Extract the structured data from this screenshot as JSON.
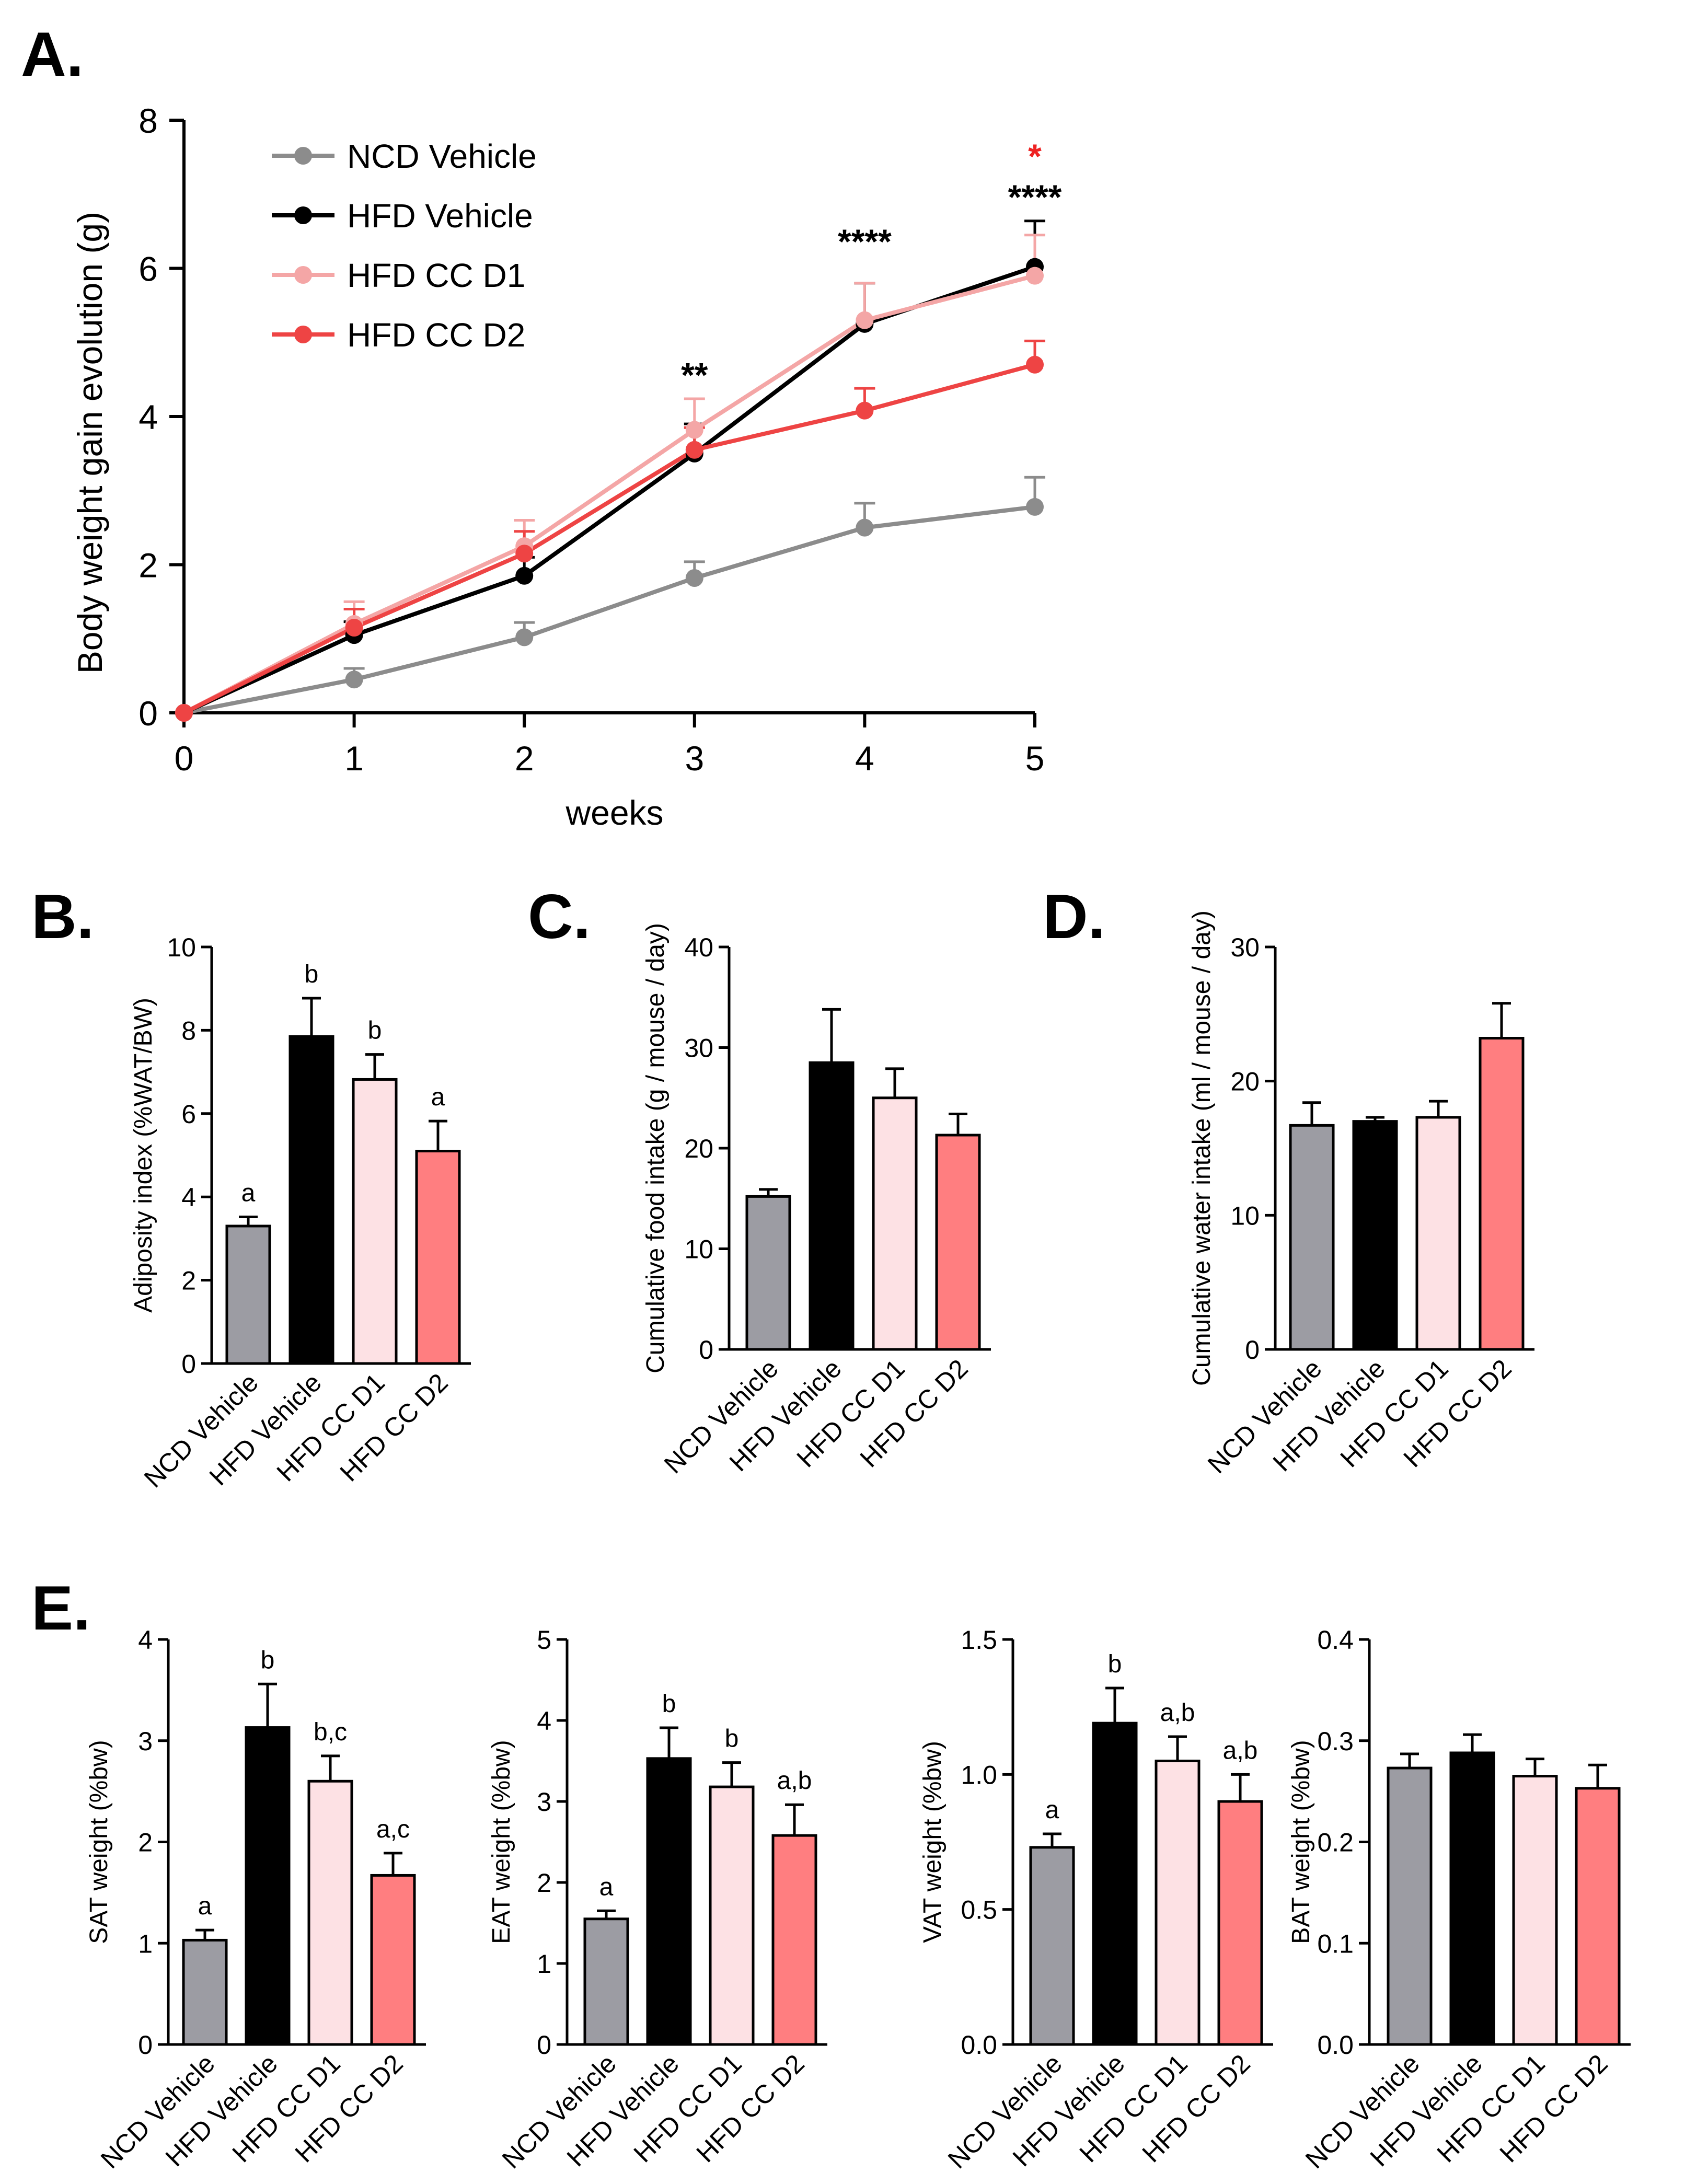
{
  "groups": [
    "NCD Vehicle",
    "HFD Vehicle",
    "HFD CC D1",
    "HFD CC D2"
  ],
  "colors": {
    "ncd": "#8c8c8c",
    "hfd": "#000000",
    "cc_d1_line": "#f4a6a6",
    "cc_d2_line": "#ee4444",
    "ncd_bar": "#9c9ca3",
    "hfd_bar": "#000000",
    "cc_d1_bar": "#fde1e4",
    "cc_d2_bar": "#ff7e80",
    "sig_red": "#ee2222"
  },
  "chart_data": [
    {
      "id": "A",
      "panel_label": "A.",
      "type": "line",
      "ylabel": "Body weight gain evolution (g)",
      "xlabel": "weeks",
      "ylim": [
        0,
        8
      ],
      "yticks": [
        0,
        2,
        4,
        6,
        8
      ],
      "xlim": [
        0,
        5
      ],
      "xticks": [
        0,
        1,
        2,
        3,
        4,
        5
      ],
      "legend_position": "top-left",
      "series": [
        {
          "name": "NCD Vehicle",
          "color_key": "ncd",
          "values": [
            0,
            0.45,
            1.02,
            1.82,
            2.5,
            2.78
          ],
          "errors": [
            0,
            0.15,
            0.2,
            0.22,
            0.33,
            0.4
          ]
        },
        {
          "name": "HFD Vehicle",
          "color_key": "hfd",
          "values": [
            0,
            1.05,
            1.85,
            3.5,
            5.25,
            6.02
          ],
          "errors": [
            0,
            0.18,
            0.25,
            0.4,
            0.55,
            0.62
          ]
        },
        {
          "name": "HFD CC D1",
          "color_key": "cc_d1_line",
          "values": [
            0,
            1.2,
            2.25,
            3.82,
            5.3,
            5.9
          ],
          "errors": [
            0,
            0.3,
            0.35,
            0.42,
            0.5,
            0.55
          ]
        },
        {
          "name": "HFD CC D2",
          "color_key": "cc_d2_line",
          "values": [
            0,
            1.15,
            2.15,
            3.55,
            4.08,
            4.7
          ],
          "errors": [
            0,
            0.25,
            0.3,
            0.3,
            0.3,
            0.32
          ]
        }
      ],
      "annotations": [
        {
          "week": 3,
          "text": "**",
          "y_value": 4.4,
          "color_key": "hfd"
        },
        {
          "week": 4,
          "text": "****",
          "y_value": 6.2,
          "color_key": "hfd"
        },
        {
          "week": 5,
          "text": "****",
          "y_value": 6.8,
          "color_key": "hfd"
        },
        {
          "week": 5,
          "text": "*",
          "y_value": 7.35,
          "color_key": "sig_red"
        }
      ]
    },
    {
      "id": "B",
      "panel_label": "B.",
      "type": "bar",
      "ylabel": "Adiposity index (%WAT/BW)",
      "ylim": [
        0,
        10
      ],
      "yticks": [
        "0",
        "2",
        "4",
        "6",
        "8",
        "10"
      ],
      "values": [
        3.3,
        7.85,
        6.82,
        5.1
      ],
      "errors": [
        0.22,
        0.92,
        0.6,
        0.72
      ],
      "letters": [
        "a",
        "b",
        "b",
        "a"
      ]
    },
    {
      "id": "C",
      "panel_label": "C.",
      "type": "bar",
      "ylabel": "Cumulative food intake (g / mouse / day)",
      "ylim": [
        0,
        40
      ],
      "yticks": [
        "0",
        "10",
        "20",
        "30",
        "40"
      ],
      "values": [
        15.2,
        28.5,
        25.0,
        21.3
      ],
      "errors": [
        0.7,
        5.3,
        2.9,
        2.1
      ],
      "letters": [
        "",
        "",
        "",
        ""
      ]
    },
    {
      "id": "D",
      "panel_label": "D.",
      "type": "bar",
      "ylabel": "Cumulative water intake (ml / mouse / day)",
      "ylim": [
        0,
        30
      ],
      "yticks": [
        "0",
        "10",
        "20",
        "30"
      ],
      "values": [
        16.7,
        17.0,
        17.3,
        23.2
      ],
      "errors": [
        1.7,
        0.3,
        1.2,
        2.6
      ],
      "letters": [
        "",
        "",
        "",
        ""
      ]
    },
    {
      "id": "E1",
      "panel_label": "E.",
      "type": "bar",
      "ylabel": "SAT weight (%bw)",
      "ylim": [
        0,
        4
      ],
      "yticks": [
        "0",
        "1",
        "2",
        "3",
        "4"
      ],
      "values": [
        1.03,
        3.13,
        2.6,
        1.67
      ],
      "errors": [
        0.1,
        0.43,
        0.25,
        0.22
      ],
      "letters": [
        "a",
        "b",
        "b,c",
        "a,c"
      ]
    },
    {
      "id": "E2",
      "panel_label": "",
      "type": "bar",
      "ylabel": "EAT weight (%bw)",
      "ylim": [
        0,
        5
      ],
      "yticks": [
        "0",
        "1",
        "2",
        "3",
        "4",
        "5"
      ],
      "values": [
        1.55,
        3.53,
        3.18,
        2.58
      ],
      "errors": [
        0.1,
        0.38,
        0.3,
        0.38
      ],
      "letters": [
        "a",
        "b",
        "b",
        "a,b"
      ]
    },
    {
      "id": "E3",
      "panel_label": "",
      "type": "bar",
      "ylabel": "VAT weight (%bw)",
      "ylim": [
        0,
        1.5
      ],
      "yticks": [
        "0.0",
        "0.5",
        "1.0",
        "1.5"
      ],
      "values": [
        0.73,
        1.19,
        1.05,
        0.9
      ],
      "errors": [
        0.05,
        0.13,
        0.09,
        0.1
      ],
      "letters": [
        "a",
        "b",
        "a,b",
        "a,b"
      ]
    },
    {
      "id": "E4",
      "panel_label": "",
      "type": "bar",
      "ylabel": "BAT weight (%bw)",
      "ylim": [
        0,
        0.4
      ],
      "yticks": [
        "0.0",
        "0.1",
        "0.2",
        "0.3",
        "0.4"
      ],
      "values": [
        0.273,
        0.288,
        0.265,
        0.253
      ],
      "errors": [
        0.014,
        0.018,
        0.017,
        0.023
      ],
      "letters": [
        "",
        "",
        "",
        ""
      ]
    }
  ]
}
